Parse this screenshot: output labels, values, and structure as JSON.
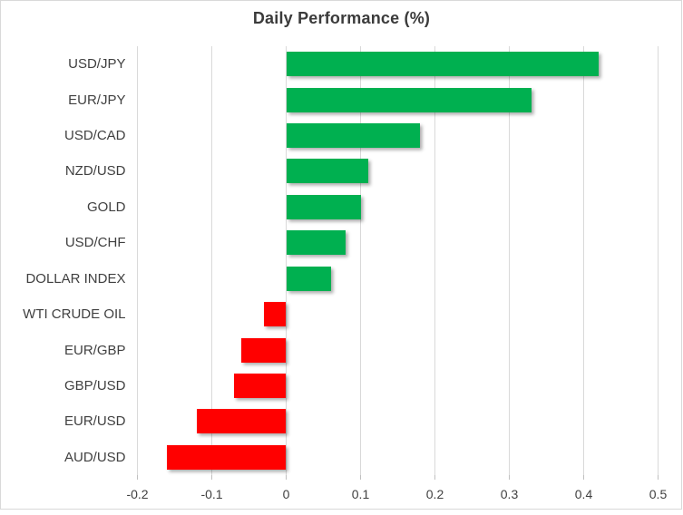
{
  "chart_data": {
    "type": "bar",
    "orientation": "horizontal",
    "title": "Daily Performance (%)",
    "categories": [
      "USD/JPY",
      "EUR/JPY",
      "USD/CAD",
      "NZD/USD",
      "GOLD",
      "USD/CHF",
      "DOLLAR INDEX",
      "WTI CRUDE OIL",
      "EUR/GBP",
      "GBP/USD",
      "EUR/USD",
      "AUD/USD"
    ],
    "values": [
      0.42,
      0.33,
      0.18,
      0.11,
      0.1,
      0.08,
      0.06,
      -0.03,
      -0.06,
      -0.07,
      -0.12,
      -0.16
    ],
    "xlim": [
      -0.2,
      0.5
    ],
    "x_ticks": [
      -0.2,
      -0.1,
      0,
      0.1,
      0.2,
      0.3,
      0.4,
      0.5
    ],
    "x_tick_labels": [
      "-0.2",
      "-0.1",
      "0",
      "0.1",
      "0.2",
      "0.3",
      "0.4",
      "0.5"
    ],
    "grid": true,
    "legend": "none",
    "colors": {
      "positive": "#00B050",
      "negative": "#FF0000",
      "gridline": "#D9D9D9",
      "tick": "#C0C0C0",
      "axis_text": "#404040",
      "title_text": "#3B3B3B",
      "frame_border": "#D9D9D9",
      "background": "#FFFFFF"
    }
  }
}
